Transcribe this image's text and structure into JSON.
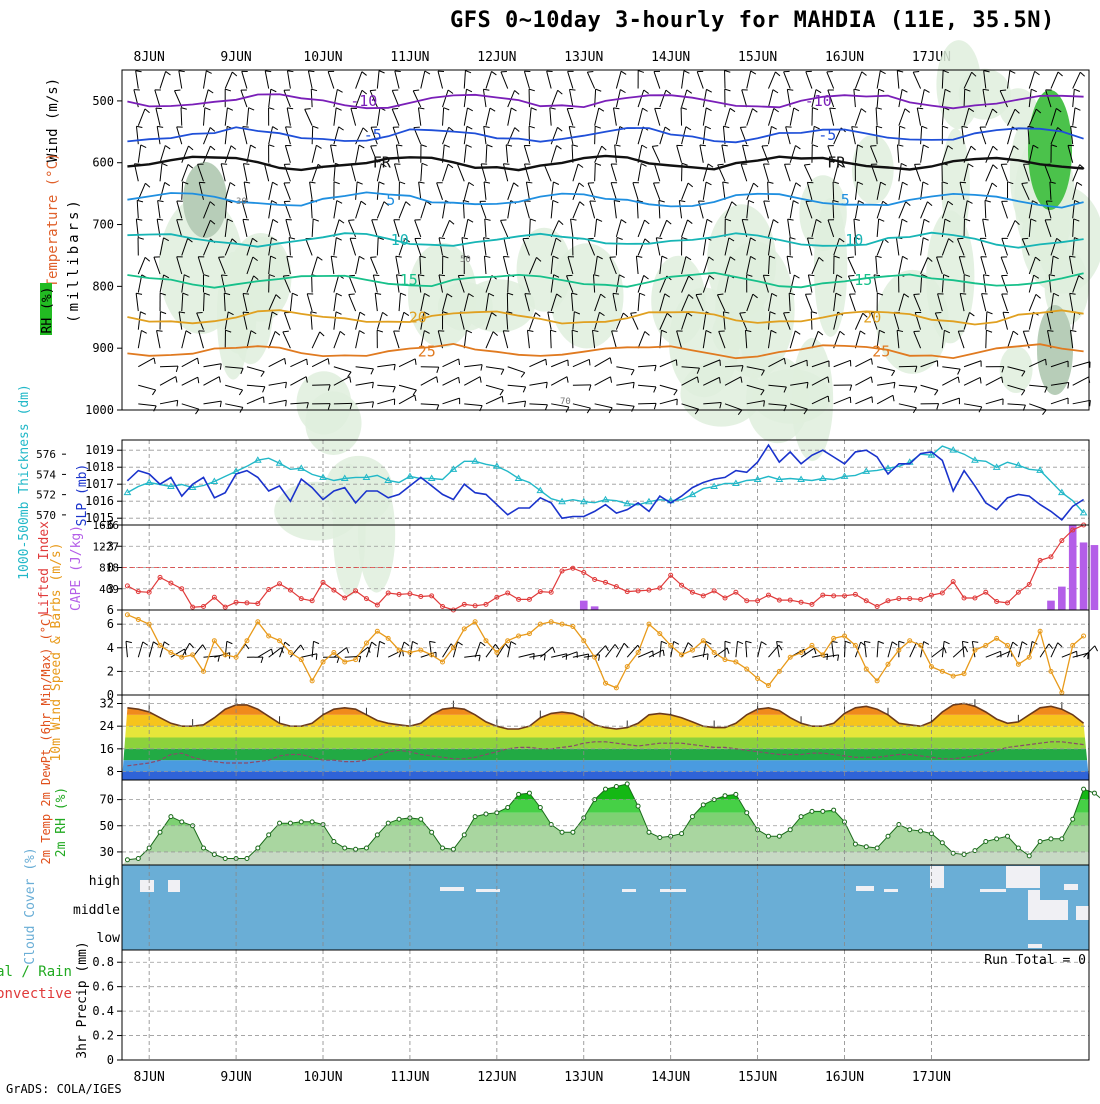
{
  "title": "GFS 0~10day 3-hourly for MAHDIA (11E, 35.5N)",
  "credit": "GrADS: COLA/IGES",
  "dates": [
    "8JUN",
    "9JUN",
    "10JUN",
    "11JUN",
    "12JUN",
    "13JUN",
    "14JUN",
    "15JUN",
    "16JUN",
    "17JUN"
  ],
  "colors": {
    "slp": "#1a33cc",
    "thickness": "#22b8c8",
    "lifted": "#e03a3a",
    "cape": "#b45ee8",
    "wind": "#e89a1a",
    "cloud": "#6aaed6",
    "rh": "#22aa22"
  },
  "chart_data": [
    {
      "type": "heatmap",
      "name": "upper-air",
      "ylabel_wind": "Wind (m/s)",
      "ylabel_temp": "Temperature (°C)",
      "ylabel_rh": "RH (%)",
      "ylabel_axis": "(millibars)",
      "y_ticks": [
        500,
        600,
        700,
        800,
        900,
        1000
      ],
      "ylim": [
        450,
        1000
      ],
      "isotherms": [
        {
          "label": "-10",
          "level": 500,
          "color": "#7a1fb8"
        },
        {
          "label": "-5",
          "level": 555,
          "color": "#1f4fd8"
        },
        {
          "label": "FR",
          "level": 600,
          "color": "#111111"
        },
        {
          "label": "5",
          "level": 660,
          "color": "#1f8fe0"
        },
        {
          "label": "10",
          "level": 725,
          "color": "#17b5b5"
        },
        {
          "label": "15",
          "level": 790,
          "color": "#17c08a"
        },
        {
          "label": "20",
          "level": 850,
          "color": "#e0a020"
        },
        {
          "label": "25",
          "level": 905,
          "color": "#e07a20"
        }
      ],
      "rh_contours": [
        "30",
        "50",
        "70"
      ]
    },
    {
      "type": "line",
      "name": "slp-thickness",
      "ylabel_left": "1000-500mb Thickness (dm)",
      "ylabel_right": "SLP (mb)",
      "thickness_ticks": [
        570,
        572,
        574,
        576
      ],
      "slp_ticks": [
        1015,
        1016,
        1017,
        1018,
        1019
      ],
      "series": [
        {
          "name": "SLP",
          "values": [
            1017.2,
            1017.8,
            1017.6,
            1017.0,
            1017.4,
            1016.3,
            1017.0,
            1017.4,
            1016.2,
            1016.5,
            1017.6,
            1017.8,
            1017.4,
            1016.6,
            1016.9,
            1016.0,
            1017.3,
            1016.8,
            1016.1,
            1016.6,
            1016.8,
            1015.9,
            1016.6,
            1016.6,
            1016.2,
            1016.4,
            1016.9,
            1017.4,
            1016.9,
            1016.4,
            1016.1,
            1017.0,
            1016.5,
            1016.4,
            1015.8,
            1015.2,
            1015.6,
            1015.6,
            1016.2,
            1015.9,
            1015.0,
            1015.1,
            1015.1,
            1015.4,
            1015.8,
            1015.3,
            1015.5,
            1015.9,
            1015.4,
            1016.3,
            1015.9,
            1016.3,
            1016.8,
            1017.1,
            1017.3,
            1017.4,
            1017.8,
            1017.7,
            1018.3,
            1019.3,
            1018.3,
            1018.9,
            1018.2,
            1018.7,
            1019.0,
            1018.6,
            1018.2,
            1018.9,
            1019.0,
            1018.6,
            1017.6,
            1018.2,
            1018.2,
            1018.8,
            1018.9,
            1018.4,
            1016.6,
            1017.8,
            1016.9,
            1015.9,
            1015.5,
            1016.2,
            1016.4,
            1016.3,
            1015.8,
            1015.4,
            1014.9,
            1015.7,
            1016.1
          ]
        },
        {
          "name": "Thickness",
          "values": [
            572.2,
            572.8,
            573.2,
            573.0,
            572.8,
            573.0,
            572.7,
            572.9,
            573.3,
            573.8,
            574.3,
            574.8,
            575.4,
            575.6,
            575.1,
            574.5,
            574.6,
            574.0,
            573.7,
            573.4,
            573.6,
            573.7,
            573.7,
            573.9,
            573.4,
            573.2,
            573.8,
            573.6,
            573.6,
            573.5,
            574.5,
            575.3,
            575.3,
            575.0,
            574.8,
            574.3,
            573.6,
            573.2,
            572.4,
            571.6,
            571.3,
            571.5,
            571.3,
            571.2,
            571.5,
            571.4,
            571.1,
            571.0,
            571.3,
            571.5,
            571.4,
            571.5,
            572.0,
            572.6,
            572.8,
            573.1,
            573.1,
            573.4,
            573.5,
            573.8,
            573.5,
            573.6,
            573.5,
            573.4,
            573.6,
            573.5,
            573.8,
            573.9,
            574.3,
            574.4,
            574.6,
            574.8,
            575.2,
            576.0,
            575.9,
            576.8,
            576.4,
            576.0,
            575.4,
            575.3,
            574.7,
            575.2,
            574.9,
            574.5,
            574.4,
            573.3,
            572.2,
            571.4,
            570.2
          ]
        }
      ]
    },
    {
      "type": "line",
      "name": "lifted-cape",
      "ylabel_left": "Lifted Index",
      "ylabel_right": "CAPE (J/kg)",
      "li_ticks": [
        "-6",
        "-3",
        "0",
        "3",
        "6"
      ],
      "cape_ticks": [
        "1636",
        "1227",
        "818",
        "409"
      ],
      "series": [
        {
          "name": "Lifted Index",
          "values": [
            2.6,
            3.4,
            3.5,
            1.4,
            2.2,
            3.0,
            5.6,
            5.5,
            4.2,
            5.6,
            4.9,
            5.0,
            5.1,
            3.1,
            2.3,
            3.2,
            4.4,
            4.7,
            2.1,
            3.2,
            4.3,
            3.3,
            4.4,
            5.3,
            3.6,
            3.8,
            3.7,
            4.1,
            4.0,
            5.5,
            6.0,
            5.2,
            5.4,
            5.2,
            4.2,
            3.6,
            4.5,
            4.5,
            3.4,
            3.5,
            0.5,
            0.1,
            0.7,
            1.7,
            2.1,
            2.7,
            3.4,
            3.3,
            3.2,
            2.9,
            1.1,
            2.5,
            3.5,
            4.0,
            3.3,
            4.3,
            3.5,
            4.7,
            4.7,
            3.9,
            4.6,
            4.6,
            4.9,
            5.2,
            3.9,
            4.0,
            4.0,
            3.8,
            4.7,
            5.5,
            4.7,
            4.4,
            4.4,
            4.5,
            3.9,
            3.6,
            2.0,
            4.3,
            4.3,
            3.5,
            4.8,
            5.0,
            3.5,
            2.4,
            -1.0,
            -1.5,
            -3.8,
            -5.3,
            -6.0
          ]
        },
        {
          "name": "CAPE",
          "bars": [
            [
              41,
              0
            ],
            [
              42,
              180
            ],
            [
              43,
              70
            ],
            [
              85,
              180
            ],
            [
              86,
              450
            ],
            [
              87,
              1636
            ],
            [
              88,
              1300
            ],
            [
              89,
              1250
            ],
            [
              90,
              1100
            ]
          ]
        }
      ]
    },
    {
      "type": "line",
      "name": "wind10m",
      "ylabel": "10m Wind Speed & Barbs (m/s)",
      "y_ticks": [
        0,
        2,
        4,
        6
      ],
      "series": [
        {
          "name": "Wind Speed",
          "values": [
            6.8,
            6.4,
            6.0,
            4.2,
            3.6,
            3.2,
            3.4,
            2.0,
            4.6,
            3.4,
            3.2,
            4.6,
            6.2,
            5.0,
            4.6,
            3.6,
            3.0,
            1.2,
            2.8,
            3.6,
            2.8,
            3.0,
            4.4,
            5.4,
            4.8,
            3.8,
            3.6,
            3.8,
            3.4,
            2.8,
            4.0,
            5.6,
            6.2,
            4.6,
            3.6,
            4.6,
            5.0,
            5.2,
            6.0,
            6.2,
            6.0,
            5.8,
            4.6,
            3.2,
            1.0,
            0.6,
            2.4,
            3.6,
            6.0,
            5.2,
            4.2,
            3.4,
            3.8,
            4.6,
            3.6,
            3.0,
            2.8,
            2.2,
            1.4,
            0.8,
            2.0,
            3.2,
            3.6,
            4.2,
            3.4,
            4.8,
            5.0,
            4.2,
            2.2,
            1.2,
            2.6,
            3.8,
            4.6,
            4.2,
            2.4,
            2.0,
            1.6,
            1.8,
            3.8,
            4.2,
            4.8,
            4.2,
            2.6,
            3.2,
            5.4,
            2.0,
            0.2,
            4.2,
            5.0
          ]
        }
      ]
    },
    {
      "type": "area",
      "name": "temp2m",
      "ylabel": "2m Temp 2m DewPt (6hr Min/Max) (°C)",
      "y_ticks": [
        8,
        16,
        24,
        32
      ],
      "series": [
        {
          "name": "Temp",
          "values": [
            30.5,
            30,
            29,
            27,
            25,
            24,
            24,
            24.5,
            27,
            30,
            31.5,
            31.5,
            30,
            27.5,
            25,
            24,
            24,
            25,
            28,
            30,
            30.5,
            30,
            28,
            26,
            25,
            24.5,
            24,
            25,
            28,
            30,
            30.5,
            30,
            28,
            25.5,
            24,
            23,
            23,
            24,
            27,
            28.5,
            29,
            28.5,
            27,
            24.5,
            23.5,
            23,
            23.5,
            25,
            28,
            28.5,
            28,
            27,
            25.5,
            24,
            23.5,
            23.5,
            25,
            28,
            30,
            30.5,
            29.5,
            27,
            25,
            24,
            24,
            25,
            28.5,
            30.5,
            31,
            30,
            28,
            25,
            24.5,
            24,
            25.5,
            29,
            31.5,
            32,
            31,
            29,
            26.5,
            25,
            25.5,
            28,
            30.5,
            31,
            30,
            28,
            25
          ]
        },
        {
          "name": "DewPt",
          "values": [
            10,
            10.5,
            11,
            12,
            14,
            14.5,
            13,
            12,
            11.5,
            11,
            11,
            11,
            11.5,
            12,
            13.5,
            14,
            14,
            13,
            12,
            12,
            11.5,
            11.5,
            12,
            13.5,
            15,
            15.5,
            15,
            14,
            13.5,
            13,
            12.5,
            12.5,
            13,
            14,
            15,
            16,
            16.5,
            16.5,
            16,
            16,
            16.5,
            17,
            18,
            18.5,
            18.5,
            18,
            17.5,
            17,
            17.5,
            18,
            18,
            18,
            17.5,
            17,
            16.5,
            16.5,
            16,
            15.5,
            15,
            14.5,
            14,
            14,
            14,
            14.5,
            14.5,
            14,
            13.5,
            13,
            13,
            13,
            13.5,
            14,
            14,
            13.5,
            13,
            12.5,
            12.5,
            13,
            13.5,
            14.5,
            15.5,
            16.5,
            17,
            17.5,
            18,
            18.5,
            18.5,
            18,
            17.5
          ]
        }
      ]
    },
    {
      "type": "area",
      "name": "rh2m",
      "ylabel": "2m RH (%)",
      "y_ticks": [
        30,
        50,
        70
      ],
      "series": [
        {
          "name": "RH",
          "values": [
            24,
            25,
            33,
            45,
            57,
            53,
            50,
            33,
            28,
            25,
            25,
            25,
            33,
            43,
            52,
            52,
            53,
            53,
            51,
            38,
            33,
            32,
            33,
            43,
            52,
            55,
            56,
            55,
            45,
            33,
            32,
            43,
            57,
            59,
            60,
            64,
            74,
            75,
            64,
            51,
            45,
            45,
            56,
            70,
            78,
            80,
            82,
            65,
            45,
            41,
            42,
            44,
            57,
            66,
            70,
            73,
            74,
            60,
            47,
            42,
            42,
            47,
            57,
            61,
            61,
            62,
            53,
            36,
            34,
            33,
            42,
            51,
            47,
            46,
            44,
            37,
            29,
            28,
            31,
            38,
            40,
            42,
            33,
            27,
            38,
            40,
            40,
            55,
            78,
            75,
            68
          ]
        }
      ]
    },
    {
      "type": "heatmap",
      "name": "cloud",
      "ylabel": "Cloud Cover (%)",
      "row_labels": [
        "high",
        "middle",
        "low"
      ]
    },
    {
      "type": "bar",
      "name": "precip",
      "ylabel_total": "Total / Rain",
      "ylabel_conv": "Convective",
      "ylabel_axis": "3hr Precip (mm)",
      "y_ticks": [
        "0",
        "0.2",
        "0.4",
        "0.6",
        "0.8"
      ],
      "run_total": "Run Total = 0",
      "values": []
    }
  ]
}
